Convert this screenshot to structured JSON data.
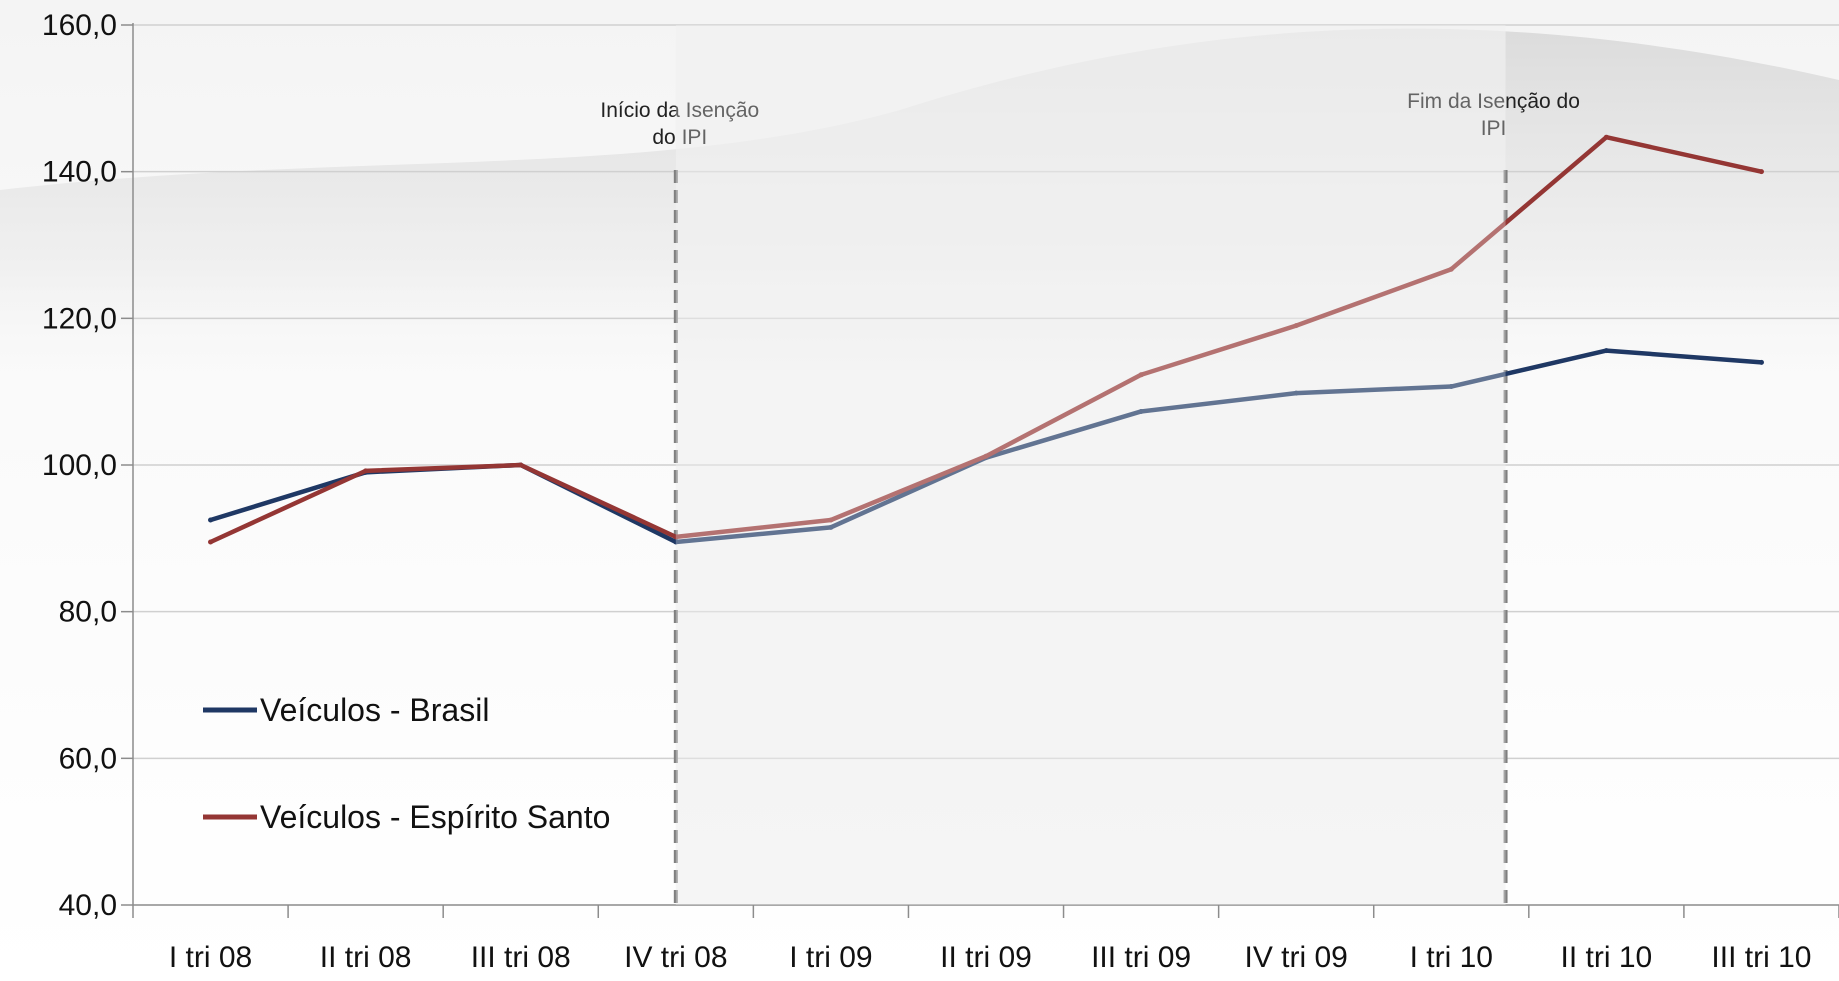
{
  "chart_data": {
    "type": "line",
    "categories": [
      "I tri 08",
      "II tri 08",
      "III tri 08",
      "IV tri 08",
      "I tri 09",
      "II tri 09",
      "III tri 09",
      "IV tri 09",
      "I tri 10",
      "II tri 10",
      "III tri 10"
    ],
    "series": [
      {
        "name": "Veículos - Brasil",
        "color": "#1f3864",
        "values": [
          92.5,
          99.0,
          100.0,
          89.5,
          91.5,
          101.0,
          107.3,
          109.8,
          110.7,
          115.6,
          114.0
        ]
      },
      {
        "name": "Veículos - Espírito Santo",
        "color": "#943634",
        "values": [
          89.5,
          99.2,
          100.0,
          90.2,
          92.5,
          101.2,
          112.3,
          119.0,
          126.7,
          144.7,
          140.0
        ]
      }
    ],
    "ylim": [
      40,
      160
    ],
    "yticks": [
      "40,0",
      "60,0",
      "80,0",
      "100,0",
      "120,0",
      "140,0",
      "160,0"
    ],
    "ytick_values": [
      40,
      60,
      80,
      100,
      120,
      140,
      160
    ],
    "grid": true,
    "legend_position": "bottom-left",
    "annotations": [
      {
        "lines": [
          "Início da Isenção",
          "do IPI"
        ],
        "x_position": 3
      },
      {
        "lines": [
          "Fim da Isenção do",
          "IPI"
        ],
        "x_position": 8.35
      }
    ],
    "highlight_period": {
      "from": 3,
      "to": 8.35,
      "color": "#e6e6e6"
    }
  }
}
